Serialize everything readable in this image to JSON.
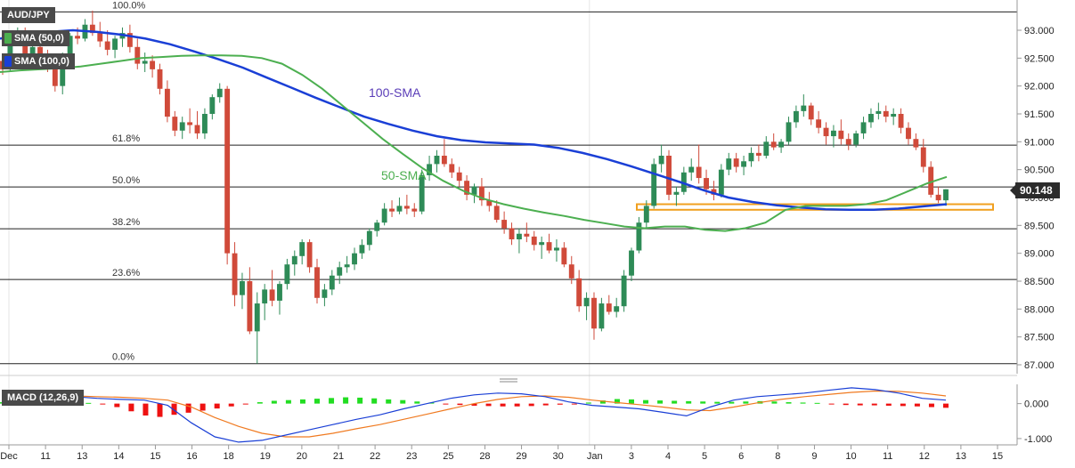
{
  "symbol": "AUD/JPY",
  "legend": {
    "sma50": {
      "label": "SMA (50,0)",
      "color": "#4caf50"
    },
    "sma100": {
      "label": "SMA (100,0)",
      "color": "#1a3fd6"
    },
    "macd": {
      "label": "MACD (12,26,9)"
    }
  },
  "annotations": {
    "sma100": "100-SMA",
    "sma50": "50-SMA"
  },
  "last_price": "90.148",
  "chart_data": [
    {
      "type": "candlestick",
      "x_labels": [
        "Dec",
        "11",
        "13",
        "14",
        "15",
        "16",
        "18",
        "19",
        "20",
        "21",
        "22",
        "23",
        "25",
        "28",
        "29",
        "30",
        "Jan",
        "3",
        "4",
        "5",
        "6",
        "8",
        "9",
        "10",
        "11",
        "12",
        "13",
        "15"
      ],
      "y_ticks": [
        "93.000",
        "92.500",
        "92.000",
        "91.500",
        "91.000",
        "90.500",
        "90.000",
        "89.500",
        "89.000",
        "88.500",
        "88.000",
        "87.500",
        "87.000"
      ],
      "ylim": [
        86.95,
        93.45
      ],
      "fibonacci": [
        {
          "label": "100.0%",
          "price": 93.33
        },
        {
          "label": "61.8%",
          "price": 90.94
        },
        {
          "label": "50.0%",
          "price": 90.19
        },
        {
          "label": "38.2%",
          "price": 89.44
        },
        {
          "label": "23.6%",
          "price": 88.53
        },
        {
          "label": "0.0%",
          "price": 87.02
        }
      ],
      "support_zone": [
        89.78,
        89.88
      ],
      "candles": [
        [
          92.45,
          92.55,
          92.2,
          92.3
        ],
        [
          92.3,
          92.95,
          92.25,
          92.85
        ],
        [
          92.85,
          93.05,
          92.75,
          92.95
        ],
        [
          92.95,
          93.05,
          92.4,
          92.55
        ],
        [
          92.55,
          92.75,
          92.35,
          92.7
        ],
        [
          92.7,
          92.85,
          92.45,
          92.55
        ],
        [
          92.55,
          92.65,
          92.25,
          92.3
        ],
        [
          92.3,
          92.5,
          91.9,
          92.0
        ],
        [
          92.0,
          92.6,
          91.85,
          92.5
        ],
        [
          92.5,
          92.95,
          92.45,
          92.9
        ],
        [
          92.9,
          93.05,
          92.75,
          92.85
        ],
        [
          92.85,
          93.2,
          92.8,
          93.1
        ],
        [
          93.1,
          93.35,
          92.9,
          92.95
        ],
        [
          92.95,
          93.15,
          92.7,
          92.8
        ],
        [
          92.8,
          93.0,
          92.55,
          92.65
        ],
        [
          92.65,
          92.9,
          92.5,
          92.85
        ],
        [
          92.85,
          93.05,
          92.7,
          92.95
        ],
        [
          92.95,
          93.1,
          92.6,
          92.7
        ],
        [
          92.7,
          92.85,
          92.3,
          92.4
        ],
        [
          92.4,
          92.6,
          92.25,
          92.45
        ],
        [
          92.45,
          92.55,
          92.15,
          92.3
        ],
        [
          92.3,
          92.4,
          91.85,
          91.95
        ],
        [
          91.95,
          92.1,
          91.35,
          91.45
        ],
        [
          91.45,
          91.55,
          91.1,
          91.2
        ],
        [
          91.2,
          91.45,
          91.05,
          91.35
        ],
        [
          91.35,
          91.6,
          91.15,
          91.3
        ],
        [
          91.3,
          91.55,
          91.05,
          91.15
        ],
        [
          91.15,
          91.6,
          91.05,
          91.5
        ],
        [
          91.5,
          91.85,
          91.4,
          91.8
        ],
        [
          91.8,
          92.05,
          91.7,
          91.95
        ],
        [
          91.95,
          92.0,
          88.8,
          89.0
        ],
        [
          89.0,
          89.2,
          88.05,
          88.25
        ],
        [
          88.25,
          88.65,
          88.0,
          88.5
        ],
        [
          88.5,
          88.75,
          87.55,
          87.6
        ],
        [
          87.6,
          88.3,
          87.02,
          88.1
        ],
        [
          88.1,
          88.45,
          87.8,
          88.35
        ],
        [
          88.35,
          88.7,
          88.05,
          88.15
        ],
        [
          88.15,
          88.5,
          87.9,
          88.45
        ],
        [
          88.45,
          88.9,
          88.35,
          88.8
        ],
        [
          88.8,
          89.05,
          88.6,
          88.95
        ],
        [
          88.95,
          89.25,
          88.8,
          89.2
        ],
        [
          89.2,
          89.25,
          88.65,
          88.75
        ],
        [
          88.75,
          88.9,
          88.1,
          88.2
        ],
        [
          88.2,
          88.45,
          88.05,
          88.35
        ],
        [
          88.35,
          88.7,
          88.25,
          88.6
        ],
        [
          88.6,
          88.85,
          88.45,
          88.75
        ],
        [
          88.75,
          88.95,
          88.65,
          88.8
        ],
        [
          88.8,
          89.1,
          88.7,
          89.0
        ],
        [
          89.0,
          89.25,
          88.9,
          89.15
        ],
        [
          89.15,
          89.45,
          89.05,
          89.4
        ],
        [
          89.4,
          89.6,
          89.3,
          89.55
        ],
        [
          89.55,
          89.9,
          89.5,
          89.8
        ],
        [
          89.8,
          89.95,
          89.65,
          89.75
        ],
        [
          89.75,
          90.0,
          89.7,
          89.85
        ],
        [
          89.85,
          90.05,
          89.7,
          89.8
        ],
        [
          89.8,
          89.9,
          89.65,
          89.75
        ],
        [
          89.75,
          90.5,
          89.7,
          90.4
        ],
        [
          90.4,
          90.75,
          90.3,
          90.6
        ],
        [
          90.6,
          90.85,
          90.45,
          90.75
        ],
        [
          90.75,
          91.05,
          90.55,
          90.6
        ],
        [
          90.6,
          90.7,
          90.35,
          90.45
        ],
        [
          90.45,
          90.55,
          90.2,
          90.3
        ],
        [
          90.3,
          90.4,
          89.95,
          90.05
        ],
        [
          90.05,
          90.25,
          89.9,
          90.2
        ],
        [
          90.2,
          90.35,
          89.85,
          89.95
        ],
        [
          89.95,
          90.1,
          89.75,
          89.85
        ],
        [
          89.85,
          89.95,
          89.55,
          89.6
        ],
        [
          89.6,
          89.75,
          89.35,
          89.45
        ],
        [
          89.45,
          89.55,
          89.15,
          89.25
        ],
        [
          89.25,
          89.45,
          89.0,
          89.35
        ],
        [
          89.35,
          89.55,
          89.2,
          89.3
        ],
        [
          89.3,
          89.4,
          89.05,
          89.15
        ],
        [
          89.15,
          89.3,
          88.9,
          89.2
        ],
        [
          89.2,
          89.35,
          89.0,
          89.05
        ],
        [
          89.05,
          89.25,
          88.85,
          89.1
        ],
        [
          89.1,
          89.2,
          88.75,
          88.8
        ],
        [
          88.8,
          88.95,
          88.45,
          88.55
        ],
        [
          88.55,
          88.7,
          87.95,
          88.05
        ],
        [
          88.05,
          88.3,
          87.8,
          88.2
        ],
        [
          88.2,
          88.3,
          87.45,
          87.65
        ],
        [
          87.65,
          88.2,
          87.6,
          88.1
        ],
        [
          88.1,
          88.25,
          87.9,
          87.95
        ],
        [
          87.95,
          88.2,
          87.85,
          88.05
        ],
        [
          88.05,
          88.7,
          87.95,
          88.6
        ],
        [
          88.6,
          89.1,
          88.5,
          89.05
        ],
        [
          89.05,
          89.65,
          89.0,
          89.55
        ],
        [
          89.55,
          89.95,
          89.45,
          89.85
        ],
        [
          89.85,
          90.7,
          89.8,
          90.6
        ],
        [
          90.6,
          90.95,
          90.45,
          90.75
        ],
        [
          90.75,
          90.85,
          89.95,
          90.05
        ],
        [
          90.05,
          90.2,
          89.85,
          90.1
        ],
        [
          90.1,
          90.55,
          90.05,
          90.45
        ],
        [
          90.45,
          90.7,
          90.3,
          90.55
        ],
        [
          90.55,
          90.95,
          90.25,
          90.35
        ],
        [
          90.35,
          90.5,
          90.05,
          90.15
        ],
        [
          90.15,
          90.3,
          89.95,
          90.05
        ],
        [
          90.05,
          90.6,
          90.0,
          90.5
        ],
        [
          90.5,
          90.8,
          90.4,
          90.7
        ],
        [
          90.7,
          90.8,
          90.45,
          90.55
        ],
        [
          90.55,
          90.75,
          90.4,
          90.65
        ],
        [
          90.65,
          90.9,
          90.55,
          90.8
        ],
        [
          90.8,
          90.95,
          90.65,
          90.75
        ],
        [
          90.75,
          91.1,
          90.7,
          91.0
        ],
        [
          91.0,
          91.15,
          90.85,
          90.9
        ],
        [
          90.9,
          91.05,
          90.8,
          91.0
        ],
        [
          91.0,
          91.45,
          90.95,
          91.35
        ],
        [
          91.35,
          91.65,
          91.25,
          91.55
        ],
        [
          91.55,
          91.85,
          91.45,
          91.65
        ],
        [
          91.65,
          91.7,
          91.3,
          91.4
        ],
        [
          91.4,
          91.55,
          91.15,
          91.25
        ],
        [
          91.25,
          91.35,
          90.95,
          91.1
        ],
        [
          91.1,
          91.3,
          90.9,
          91.2
        ],
        [
          91.2,
          91.4,
          90.95,
          91.05
        ],
        [
          91.05,
          91.15,
          90.85,
          90.95
        ],
        [
          90.95,
          91.2,
          90.9,
          91.15
        ],
        [
          91.15,
          91.45,
          91.05,
          91.35
        ],
        [
          91.35,
          91.6,
          91.25,
          91.5
        ],
        [
          91.5,
          91.7,
          91.4,
          91.55
        ],
        [
          91.55,
          91.65,
          91.35,
          91.45
        ],
        [
          91.45,
          91.6,
          91.3,
          91.5
        ],
        [
          91.5,
          91.6,
          91.15,
          91.25
        ],
        [
          91.25,
          91.35,
          90.95,
          91.05
        ],
        [
          91.05,
          91.15,
          90.85,
          90.9
        ],
        [
          90.9,
          91.05,
          90.45,
          90.55
        ],
        [
          90.55,
          90.65,
          90.0,
          90.05
        ],
        [
          90.05,
          90.2,
          89.9,
          89.95
        ],
        [
          89.95,
          90.15,
          89.85,
          90.148
        ]
      ],
      "sma50": [
        92.25,
        92.28,
        92.3,
        92.32,
        92.35,
        92.4,
        92.45,
        92.5,
        92.52,
        92.54,
        92.55,
        92.55,
        92.54,
        92.5,
        92.4,
        92.2,
        91.95,
        91.65,
        91.35,
        91.05,
        90.78,
        90.52,
        90.3,
        90.12,
        89.98,
        89.88,
        89.8,
        89.73,
        89.67,
        89.6,
        89.54,
        89.48,
        89.45,
        89.48,
        89.48,
        89.42,
        89.4,
        89.45,
        89.55,
        89.78,
        89.85,
        89.85,
        89.85,
        89.88,
        89.95,
        90.1,
        90.25,
        90.37
      ],
      "sma100": [
        92.85,
        92.92,
        92.97,
        93.0,
        92.97,
        92.92,
        92.85,
        92.75,
        92.62,
        92.48,
        92.33,
        92.15,
        91.97,
        91.79,
        91.62,
        91.45,
        91.32,
        91.2,
        91.1,
        91.03,
        90.99,
        90.97,
        90.95,
        90.89,
        90.8,
        90.69,
        90.56,
        90.42,
        90.28,
        90.13,
        90.0,
        89.92,
        89.86,
        89.82,
        89.79,
        89.78,
        89.78,
        89.8,
        89.84,
        89.88
      ],
      "macd_yticks": [
        "0.000",
        "-1.000"
      ],
      "macd_ylim": [
        -1.18,
        0.55
      ],
      "macd_line": [
        0.2,
        0.25,
        0.28,
        0.2,
        0.15,
        0.12,
        0.1,
        -0.05,
        -0.55,
        -0.95,
        -1.1,
        -1.05,
        -0.9,
        -0.75,
        -0.6,
        -0.45,
        -0.32,
        -0.15,
        0.0,
        0.15,
        0.25,
        0.3,
        0.28,
        0.2,
        0.05,
        -0.05,
        -0.1,
        -0.15,
        -0.25,
        -0.35,
        -0.1,
        0.1,
        0.2,
        0.25,
        0.3,
        0.38,
        0.45,
        0.4,
        0.3,
        0.15,
        0.1
      ],
      "signal_line": [
        0.15,
        0.18,
        0.2,
        0.22,
        0.2,
        0.18,
        0.15,
        0.1,
        -0.1,
        -0.4,
        -0.65,
        -0.85,
        -0.95,
        -0.95,
        -0.85,
        -0.72,
        -0.6,
        -0.45,
        -0.3,
        -0.15,
        0.0,
        0.12,
        0.2,
        0.22,
        0.18,
        0.1,
        0.03,
        -0.03,
        -0.1,
        -0.18,
        -0.2,
        -0.1,
        0.02,
        0.12,
        0.2,
        0.26,
        0.32,
        0.36,
        0.35,
        0.3,
        0.22
      ],
      "histogram": [
        0.04,
        0.05,
        0.06,
        0.05,
        0.04,
        0.03,
        0.02,
        -0.02,
        -0.1,
        -0.22,
        -0.34,
        -0.38,
        -0.32,
        -0.26,
        -0.2,
        -0.14,
        -0.08,
        -0.02,
        0.04,
        0.08,
        0.1,
        0.12,
        0.14,
        0.16,
        0.18,
        0.17,
        0.15,
        0.12,
        0.1,
        0.06,
        0.03,
        -0.01,
        -0.04,
        -0.06,
        -0.07,
        -0.08,
        -0.08,
        -0.07,
        -0.05,
        -0.03,
        -0.01,
        0.03,
        0.09,
        0.13,
        0.12,
        0.1,
        0.09,
        0.08,
        0.07,
        0.06,
        0.05,
        0.05,
        0.06,
        0.07,
        0.06,
        0.04,
        0.03,
        0.02,
        -0.02,
        -0.04,
        -0.05,
        -0.05,
        -0.06,
        -0.07,
        -0.08,
        -0.1,
        -0.12
      ]
    }
  ]
}
